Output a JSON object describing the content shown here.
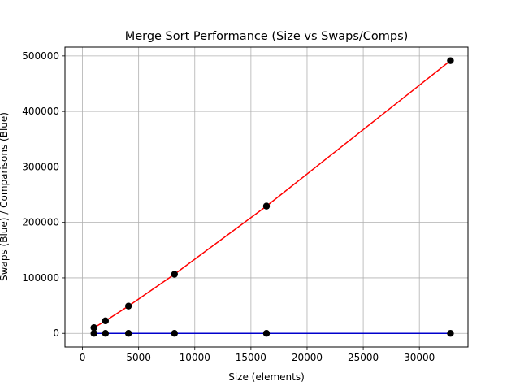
{
  "chart_data": {
    "type": "line",
    "title": "Merge Sort Performance (Size vs Swaps/Comps)",
    "xlabel": "Size (elements)",
    "ylabel": "Swaps (Blue) / Comparisons (Blue)",
    "xlim": [
      -1560,
      34328
    ],
    "ylim": [
      -24567,
      515907
    ],
    "xticks": [
      0,
      5000,
      10000,
      15000,
      20000,
      25000,
      30000
    ],
    "xtick_labels": [
      "0",
      "5000",
      "10000",
      "15000",
      "20000",
      "25000",
      "30000"
    ],
    "yticks": [
      0,
      100000,
      200000,
      300000,
      400000,
      500000
    ],
    "ytick_labels": [
      "0",
      "100000",
      "200000",
      "300000",
      "400000",
      "500000"
    ],
    "grid": true,
    "x": [
      1024,
      2048,
      4096,
      8192,
      16384,
      32768
    ],
    "series": [
      {
        "color": "#ff0000",
        "marker_color": "#000000",
        "values": [
          10240,
          22528,
          49152,
          106496,
          229376,
          491520
        ]
      },
      {
        "color": "#0000cc",
        "marker_color": "#000000",
        "values": [
          0,
          0,
          0,
          0,
          0,
          0
        ]
      }
    ]
  }
}
